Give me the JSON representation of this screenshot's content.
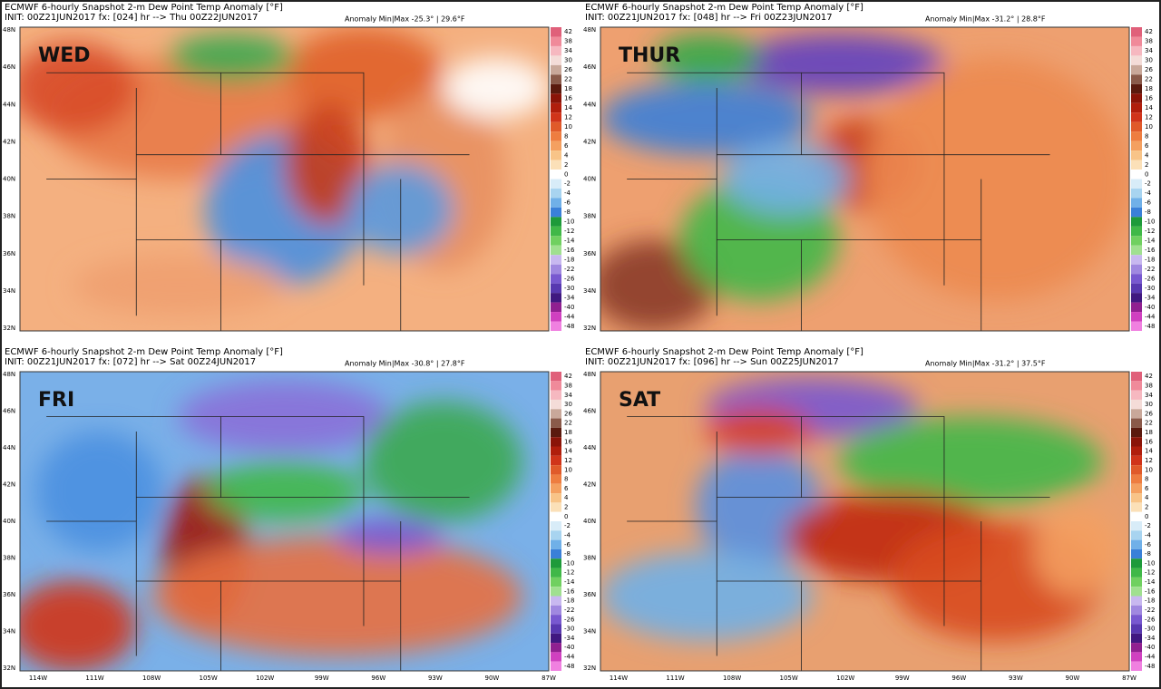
{
  "panels": [
    {
      "title": "ECMWF 6-hourly Snapshot 2-m Dew Point Temp Anomaly [°F]",
      "init": "INIT: 00Z21JUN2017  fx: [024] hr --> Thu 00Z22JUN2017",
      "anomaly": "Anomaly Min|Max -25.3° | 29.6°F",
      "day": "WED"
    },
    {
      "title": "ECMWF 6-hourly Snapshot 2-m Dew Point Temp Anomaly [°F]",
      "init": "INIT: 00Z21JUN2017  fx: [048] hr --> Fri 00Z23JUN2017",
      "anomaly": "Anomaly Min|Max -31.2° | 28.8°F",
      "day": "THUR"
    },
    {
      "title": "ECMWF 6-hourly Snapshot 2-m Dew Point Temp Anomaly [°F]",
      "init": "INIT: 00Z21JUN2017  fx: [072] hr --> Sat 00Z24JUN2017",
      "anomaly": "Anomaly Min|Max -30.8° | 27.8°F",
      "day": "FRI"
    },
    {
      "title": "ECMWF 6-hourly Snapshot 2-m Dew Point Temp Anomaly [°F]",
      "init": "INIT: 00Z21JUN2017  fx: [096] hr --> Sun 00Z25JUN2017",
      "anomaly": "Anomaly Min|Max -31.2° | 37.5°F",
      "day": "SAT"
    }
  ],
  "colorbar_labels": [
    "42",
    "38",
    "34",
    "30",
    "26",
    "22",
    "18",
    "16",
    "14",
    "12",
    "10",
    "8",
    "6",
    "4",
    "2",
    "0",
    "-2",
    "-4",
    "-6",
    "-8",
    "-10",
    "-12",
    "-14",
    "-16",
    "-18",
    "-22",
    "-26",
    "-30",
    "-34",
    "-40",
    "-44",
    "-48"
  ],
  "lat_labels": [
    "48N",
    "46N",
    "44N",
    "42N",
    "40N",
    "38N",
    "36N",
    "34N",
    "32N"
  ],
  "lon_labels": [
    "114W",
    "111W",
    "108W",
    "105W",
    "102W",
    "99W",
    "96W",
    "93W",
    "90W",
    "87W"
  ]
}
